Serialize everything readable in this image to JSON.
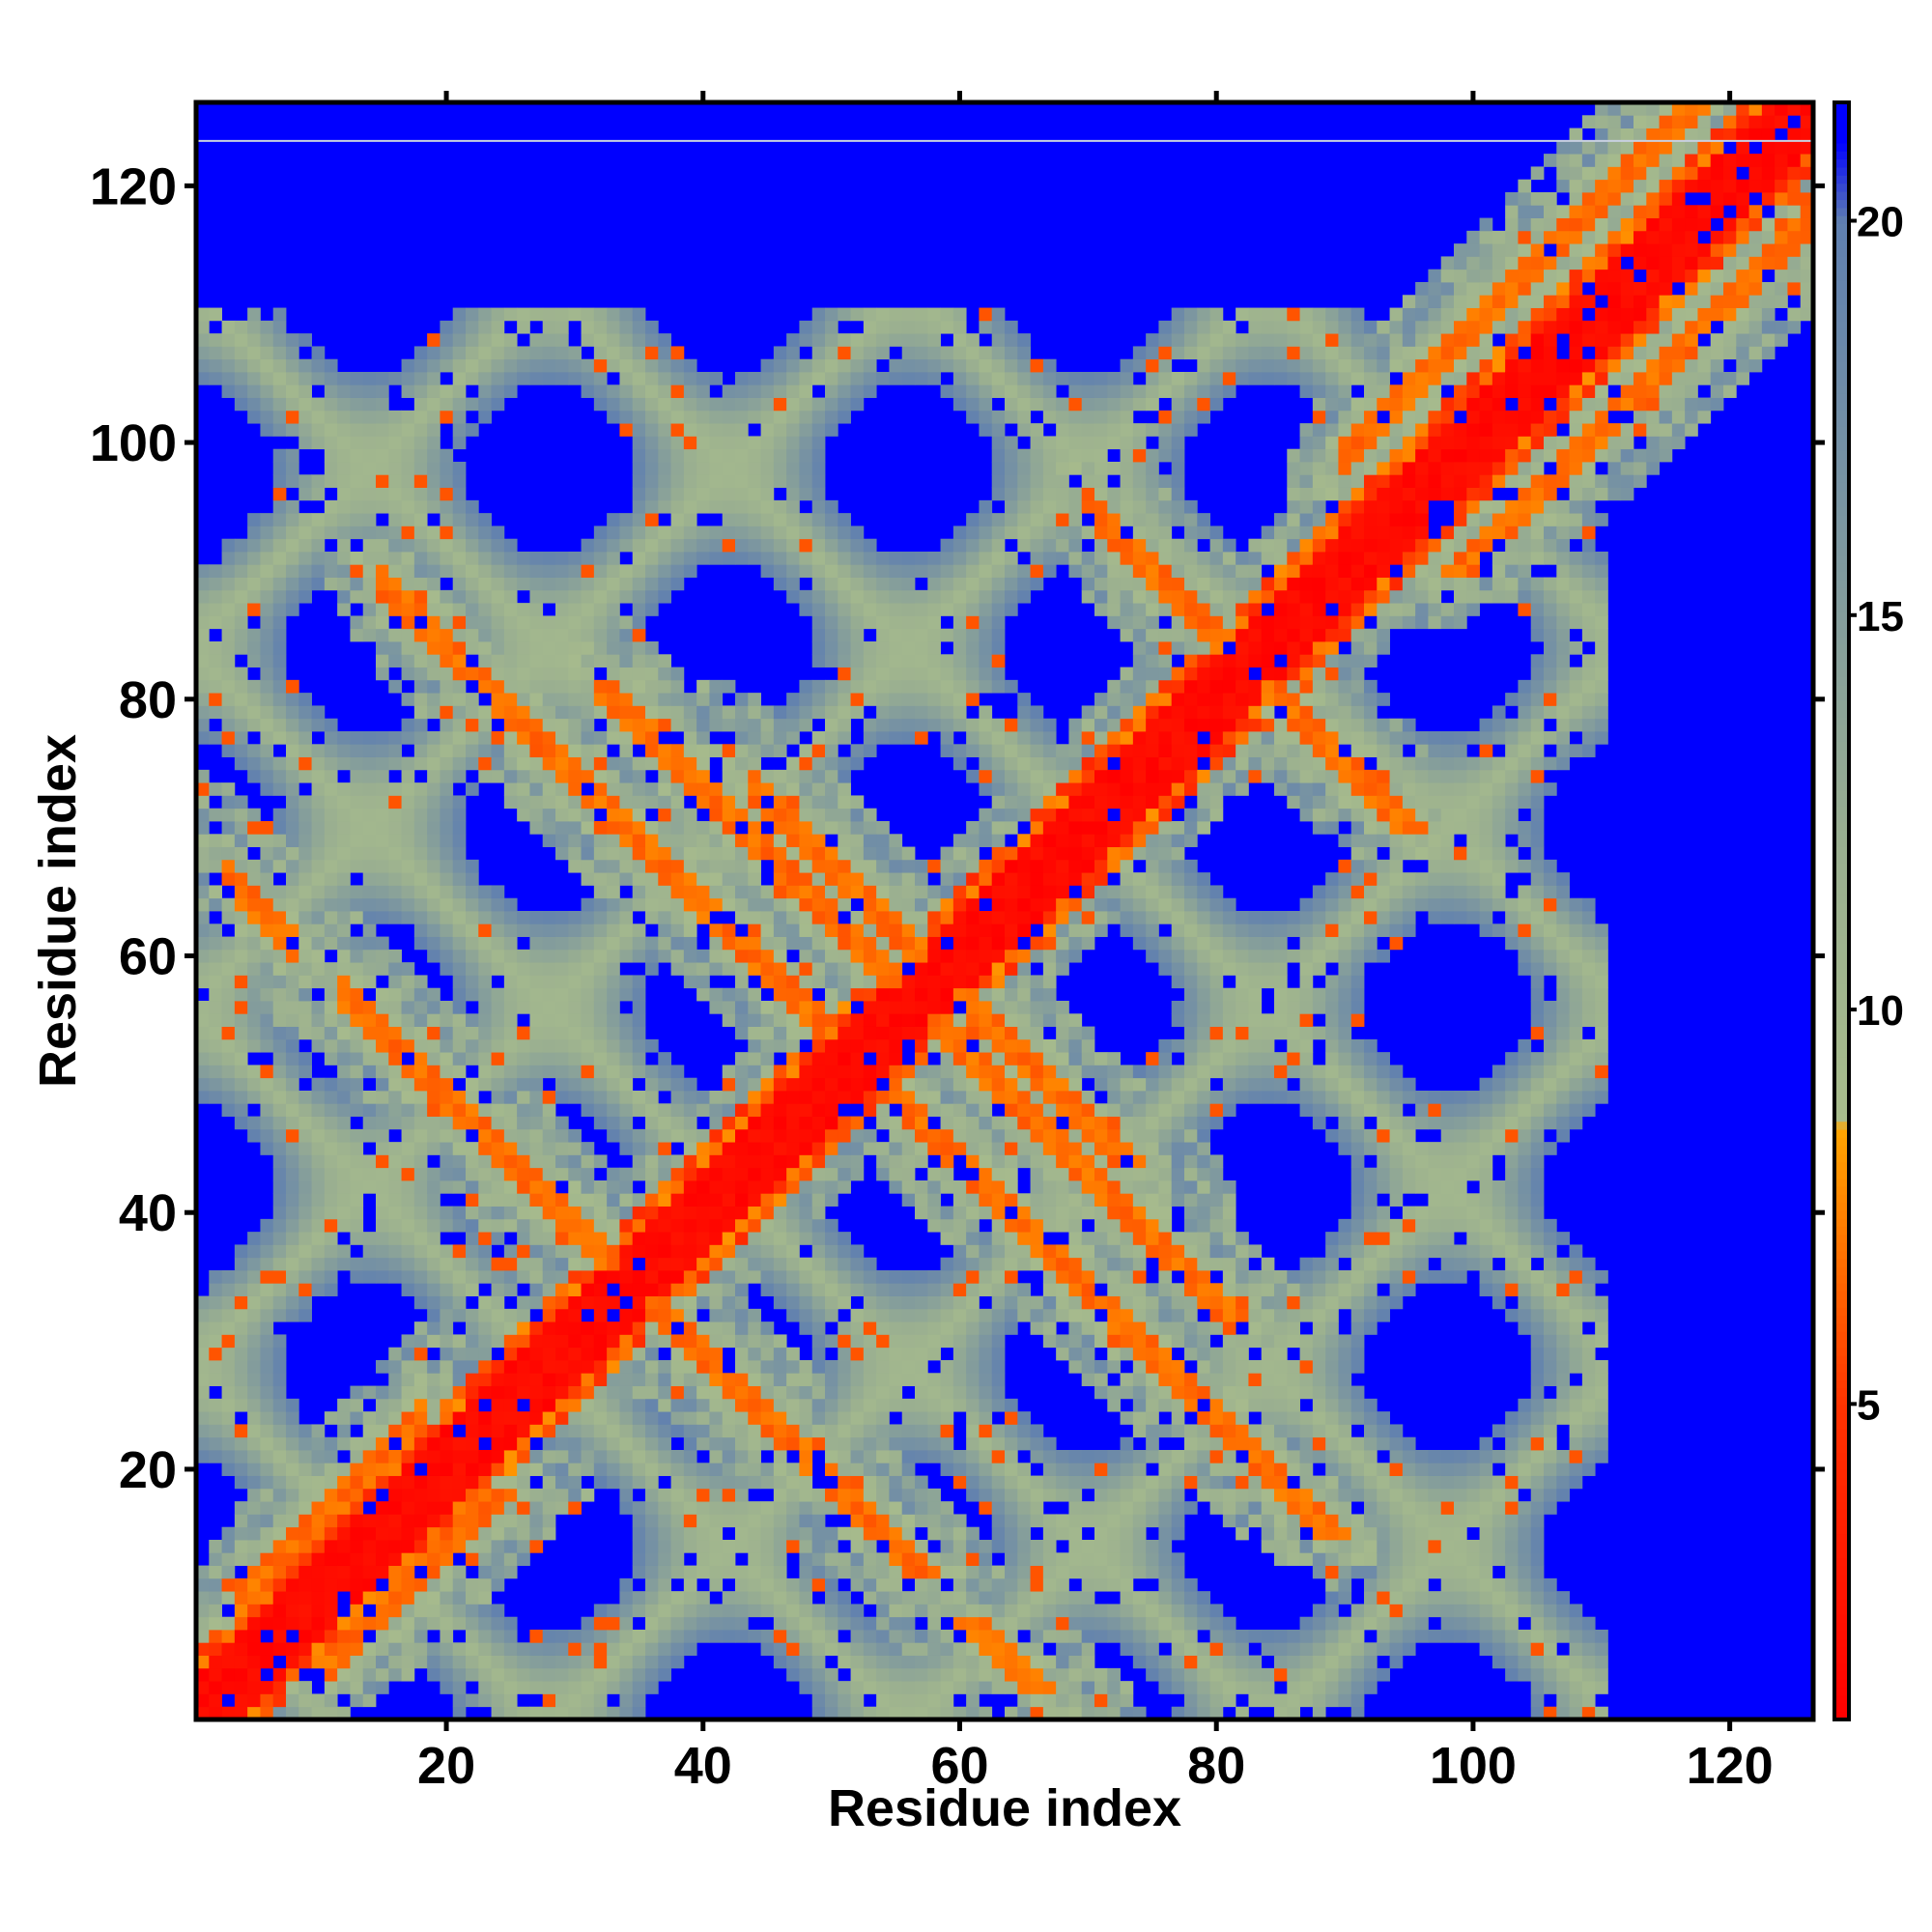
{
  "chart_data": {
    "type": "heatmap",
    "title": "",
    "xlabel": "Residue index",
    "ylabel": "Residue index",
    "xlim": [
      1,
      126
    ],
    "ylim": [
      1,
      126
    ],
    "x_ticks": [
      20,
      40,
      60,
      80,
      100,
      120
    ],
    "y_ticks": [
      20,
      40,
      60,
      80,
      100,
      120
    ],
    "x_tick_labels": [
      "20",
      "40",
      "60",
      "80",
      "100",
      "120"
    ],
    "y_tick_labels": [
      "20",
      "40",
      "60",
      "80",
      "100",
      "120"
    ],
    "colorbar": {
      "range": [
        1,
        21.5
      ],
      "ticks": [
        5,
        10,
        15,
        20
      ],
      "tick_labels": [
        "5",
        "10",
        "15",
        "20"
      ],
      "colors": [
        {
          "value": 1,
          "color": "#ff0000"
        },
        {
          "value": 5,
          "color": "#ff3300"
        },
        {
          "value": 8.5,
          "color": "#ffa500"
        },
        {
          "value": 8.6,
          "color": "#a8bc8c"
        },
        {
          "value": 12,
          "color": "#9aaf90"
        },
        {
          "value": 20,
          "color": "#5f7fb0"
        },
        {
          "value": 21,
          "color": "#0000ff"
        }
      ]
    },
    "background_value": 21,
    "description_values": "contact/distance map; diagonal band value ~1; strands of ~6 along off-diagonal lines; halo values 9-20; background 21",
    "features": {
      "diagonal": {
        "value": 1,
        "halfwidth": 2
      },
      "antiparallel_lines": [
        {
          "sum": 69,
          "from": 12,
          "to": 46
        },
        {
          "sum": 69,
          "from": 3,
          "to": 8
        },
        {
          "sum": 104,
          "from": 15,
          "to": 97
        },
        {
          "sum": 117,
          "from": 44,
          "to": 73
        },
        {
          "sum": 113,
          "from": 32,
          "to": 81
        },
        {
          "sum": 165,
          "from": 70,
          "to": 95
        },
        {
          "sum": 112,
          "from": 73,
          "to": 76
        },
        {
          "sum": 166,
          "from": 86,
          "to": 96
        }
      ],
      "parallel_lines": [
        {
          "offset": -6,
          "from": 4,
          "to": 18
        },
        {
          "offset": 9,
          "from": 90,
          "to": 118
        }
      ]
    }
  }
}
